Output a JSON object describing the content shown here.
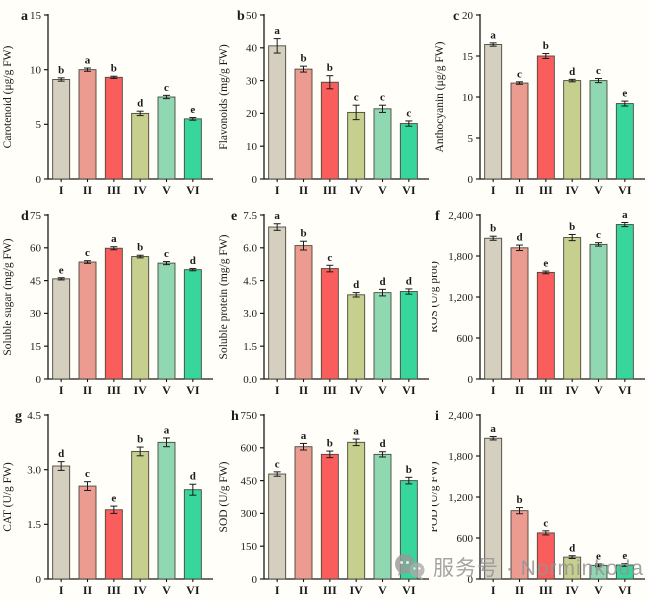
{
  "figure_name": "nine-panel-physiology-bar-figure",
  "bar_colors": [
    "#d5cfc0",
    "#ec9b91",
    "#fa5e5c",
    "#c6cf8d",
    "#90d8b2",
    "#36d69c"
  ],
  "bar_stroke": "#4a473c",
  "axis_color": "#1a1a1a",
  "background": "#fffef9",
  "watermark": {
    "icon": "wechat-chat-bubbles",
    "text": "服务号 · Norminkoda"
  },
  "chart_data": [
    {
      "type": "bar",
      "panel_label": "a",
      "ylabel": "Carotenoid (μg/g FW)",
      "ylim": [
        0,
        15
      ],
      "ytick_values": [
        0,
        5,
        10,
        15
      ],
      "ytick_labels": [
        "0",
        "5",
        "10",
        "15"
      ],
      "categories": [
        "I",
        "II",
        "III",
        "IV",
        "V",
        "VI"
      ],
      "values": [
        9.1,
        10.0,
        9.3,
        6.0,
        7.5,
        5.5
      ],
      "errors": [
        0.15,
        0.15,
        0.1,
        0.2,
        0.15,
        0.12
      ],
      "sig_letters": [
        "b",
        "a",
        "b",
        "d",
        "c",
        "e"
      ]
    },
    {
      "type": "bar",
      "panel_label": "b",
      "ylabel": "Flavonoids (mg/g FW)",
      "ylim": [
        0,
        50
      ],
      "ytick_values": [
        0,
        10,
        20,
        30,
        40,
        50
      ],
      "ytick_labels": [
        "0",
        "10",
        "20",
        "30",
        "40",
        "50"
      ],
      "categories": [
        "I",
        "II",
        "III",
        "IV",
        "V",
        "VI"
      ],
      "values": [
        40.6,
        33.5,
        29.5,
        20.3,
        21.4,
        16.9
      ],
      "errors": [
        2.2,
        0.9,
        2.0,
        2.2,
        1.1,
        0.8
      ],
      "sig_letters": [
        "a",
        "b",
        "b",
        "c",
        "c",
        "c"
      ]
    },
    {
      "type": "bar",
      "panel_label": "c",
      "ylabel": "Anthocyanin (μg/g FW)",
      "ylim": [
        0,
        20
      ],
      "ytick_values": [
        0,
        5,
        10,
        15,
        20
      ],
      "ytick_labels": [
        "0",
        "5",
        "10",
        "15",
        "20"
      ],
      "categories": [
        "I",
        "II",
        "III",
        "IV",
        "V",
        "VI"
      ],
      "values": [
        16.4,
        11.7,
        15.0,
        12.0,
        12.0,
        9.2
      ],
      "errors": [
        0.2,
        0.15,
        0.3,
        0.15,
        0.25,
        0.3
      ],
      "sig_letters": [
        "a",
        "c",
        "b",
        "d",
        "c",
        "e"
      ]
    },
    {
      "type": "bar",
      "panel_label": "d",
      "ylabel": "Soluble sugar (mg/g FW)",
      "ylim": [
        0,
        75
      ],
      "ytick_values": [
        0,
        15,
        30,
        45,
        60,
        75
      ],
      "ytick_labels": [
        "0",
        "15",
        "30",
        "45",
        "60",
        "75"
      ],
      "categories": [
        "I",
        "II",
        "III",
        "IV",
        "V",
        "VI"
      ],
      "values": [
        45.8,
        53.5,
        59.8,
        56.0,
        53.0,
        50.0
      ],
      "errors": [
        0.5,
        0.6,
        0.7,
        0.6,
        0.7,
        0.5
      ],
      "sig_letters": [
        "e",
        "c",
        "a",
        "b",
        "c",
        "d"
      ]
    },
    {
      "type": "bar",
      "panel_label": "e",
      "ylabel": "Soluble protein (mg/g FW)",
      "ylim": [
        0,
        7.5
      ],
      "ytick_values": [
        0,
        1.5,
        3.0,
        4.5,
        6.0,
        7.5
      ],
      "ytick_labels": [
        "0.0",
        "1.5",
        "3.0",
        "4.5",
        "6.0",
        "7.5"
      ],
      "categories": [
        "I",
        "II",
        "III",
        "IV",
        "V",
        "VI"
      ],
      "values": [
        6.95,
        6.1,
        5.05,
        3.85,
        3.95,
        4.0
      ],
      "errors": [
        0.15,
        0.2,
        0.15,
        0.1,
        0.15,
        0.12
      ],
      "sig_letters": [
        "a",
        "b",
        "c",
        "d",
        "d",
        "d"
      ]
    },
    {
      "type": "bar",
      "panel_label": "f",
      "ylabel": "ROS (U/g prot)",
      "ylim": [
        0,
        2400
      ],
      "ytick_values": [
        0,
        600,
        1200,
        1800,
        2400
      ],
      "ytick_labels": [
        "0",
        "600",
        "1,200",
        "1,800",
        "2,400"
      ],
      "categories": [
        "I",
        "II",
        "III",
        "IV",
        "V",
        "VI"
      ],
      "values": [
        2060,
        1920,
        1560,
        2070,
        1970,
        2260
      ],
      "errors": [
        30,
        40,
        20,
        45,
        25,
        30
      ],
      "sig_letters": [
        "b",
        "d",
        "e",
        "b",
        "c",
        "a"
      ]
    },
    {
      "type": "bar",
      "panel_label": "g",
      "ylabel": "CAT (U/g FW)",
      "ylim": [
        0,
        4.5
      ],
      "ytick_values": [
        0,
        1.5,
        3.0,
        4.5
      ],
      "ytick_labels": [
        "0",
        "1.5",
        "3.0",
        "4.5"
      ],
      "categories": [
        "I",
        "II",
        "III",
        "IV",
        "V",
        "VI"
      ],
      "values": [
        3.1,
        2.55,
        1.9,
        3.5,
        3.75,
        2.45
      ],
      "errors": [
        0.12,
        0.12,
        0.1,
        0.12,
        0.12,
        0.15
      ],
      "sig_letters": [
        "d",
        "c",
        "e",
        "b",
        "a",
        "d"
      ]
    },
    {
      "type": "bar",
      "panel_label": "h",
      "ylabel": "SOD (U/g FW)",
      "ylim": [
        0,
        750
      ],
      "ytick_values": [
        0,
        150,
        300,
        450,
        600,
        750
      ],
      "ytick_labels": [
        "0",
        "150",
        "300",
        "450",
        "600",
        "750"
      ],
      "categories": [
        "I",
        "II",
        "III",
        "IV",
        "V",
        "VI"
      ],
      "values": [
        480,
        605,
        570,
        625,
        570,
        450
      ],
      "errors": [
        10,
        15,
        15,
        15,
        12,
        15
      ],
      "sig_letters": [
        "c",
        "a",
        "b",
        "a",
        "d",
        "b"
      ]
    },
    {
      "type": "bar",
      "panel_label": "i",
      "ylabel": "POD (U/g FW)",
      "ylim": [
        0,
        2400
      ],
      "ytick_values": [
        0,
        600,
        1200,
        1800,
        2400
      ],
      "ytick_labels": [
        "0",
        "600",
        "1,200",
        "1,800",
        "2,400"
      ],
      "categories": [
        "I",
        "II",
        "III",
        "IV",
        "V",
        "VI"
      ],
      "values": [
        2060,
        1000,
        675,
        320,
        200,
        205
      ],
      "errors": [
        25,
        45,
        30,
        20,
        20,
        20
      ],
      "sig_letters": [
        "a",
        "b",
        "c",
        "d",
        "e",
        "e"
      ]
    }
  ]
}
